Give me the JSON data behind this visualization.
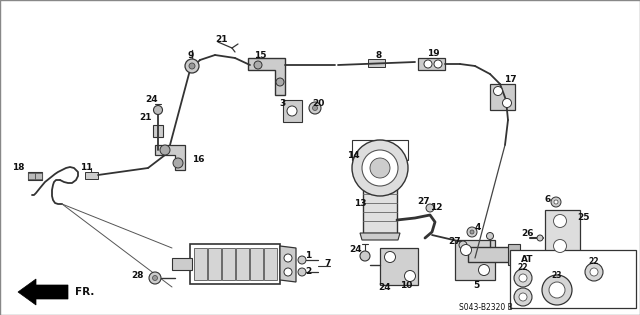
{
  "bg_color": "#f0f0eb",
  "text_color": "#111111",
  "diagram_code": "S043-B2320 B",
  "fr_label": "FR.",
  "at_label": "AT",
  "line_color": "#222222",
  "pipe_color": "#333333"
}
